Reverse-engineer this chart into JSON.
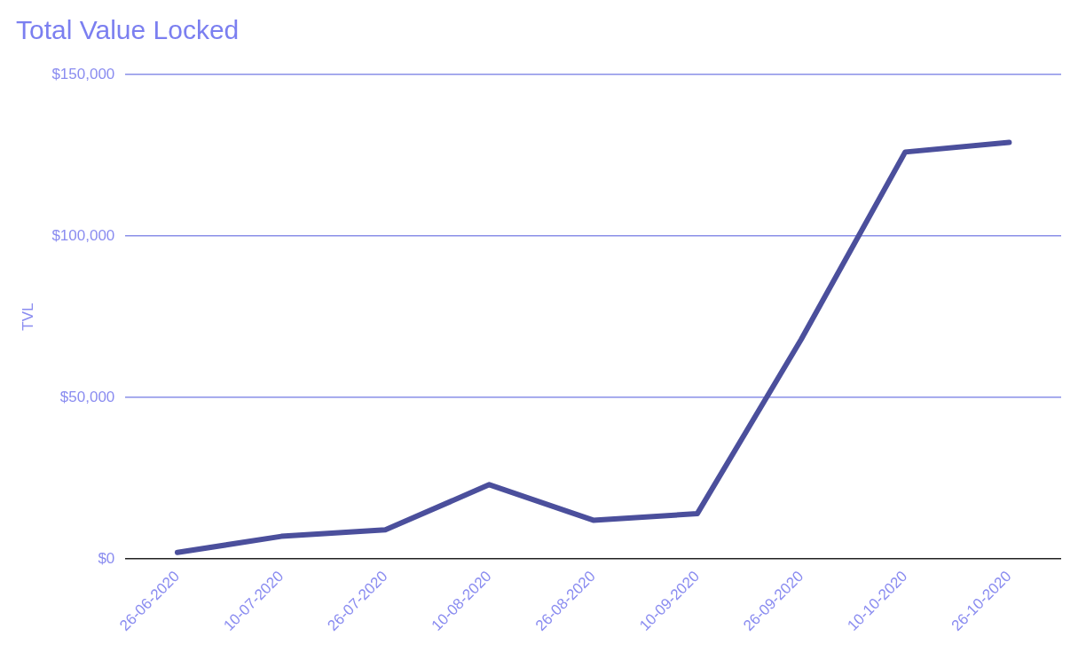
{
  "chart_data": {
    "type": "line",
    "title": "Total Value Locked",
    "ylabel": "TVL",
    "categories": [
      "26-06-2020",
      "10-07-2020",
      "26-07-2020",
      "10-08-2020",
      "26-08-2020",
      "10-09-2020",
      "26-09-2020",
      "10-10-2020",
      "26-10-2020"
    ],
    "series": [
      {
        "color": "#4b4f9c",
        "values": [
          2000,
          7000,
          9000,
          23000,
          12000,
          14000,
          68000,
          126000,
          129000
        ]
      }
    ],
    "ylim": [
      0,
      150000
    ],
    "yticks": [
      {
        "value": 0,
        "label": "$0"
      },
      {
        "value": 50000,
        "label": "$50,000"
      },
      {
        "value": 100000,
        "label": "$100,000"
      },
      {
        "value": 150000,
        "label": "$150,000"
      }
    ],
    "grid": "y",
    "legend": false,
    "marker": "none",
    "line_style": "solid"
  }
}
